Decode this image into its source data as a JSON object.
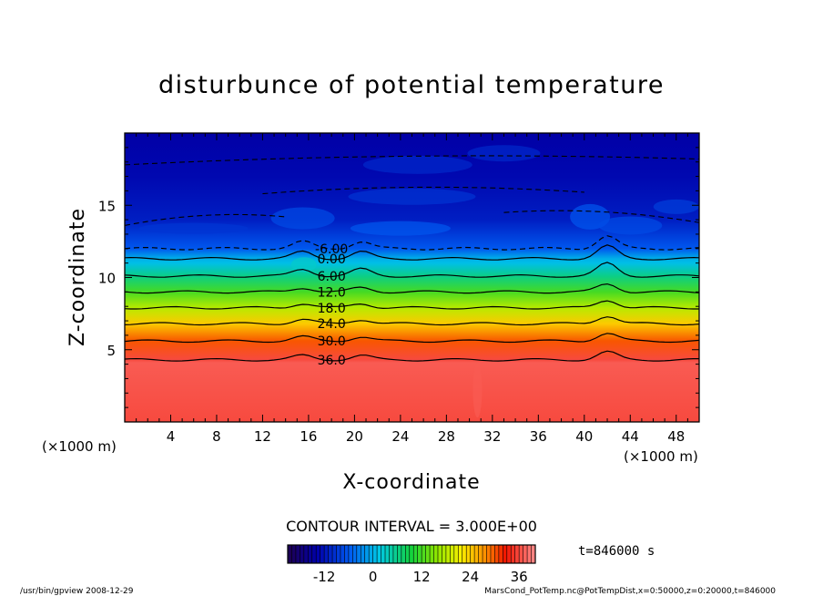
{
  "chart_data": {
    "type": "heatmap",
    "title": "disturbunce of potential temperature",
    "xlabel": "X-coordinate",
    "ylabel": "Z-coordinate",
    "x_unit": "(×1000 m)",
    "y_unit": "(×1000 m)",
    "xlim": [
      0,
      50
    ],
    "ylim": [
      0,
      20
    ],
    "x_ticks": [
      4,
      8,
      12,
      16,
      20,
      24,
      28,
      32,
      36,
      40,
      44,
      48
    ],
    "y_ticks": [
      5,
      10,
      15
    ],
    "contour_interval": "CONTOUR INTERVAL = 3.000E+00",
    "time": "t=846000 s",
    "color_range": [
      -21,
      40
    ],
    "colorbar_ticks": [
      -12,
      0,
      12,
      24,
      36
    ],
    "contours": [
      {
        "label": "-6.00",
        "z": 12.0
      },
      {
        "label": "0.00",
        "z": 11.3
      },
      {
        "label": "6.00",
        "z": 10.1
      },
      {
        "label": "12.0",
        "z": 9.0
      },
      {
        "label": "18.0",
        "z": 7.9
      },
      {
        "label": "24.0",
        "z": 6.8
      },
      {
        "label": "30.0",
        "z": 5.6
      },
      {
        "label": "36.0",
        "z": 4.3
      }
    ],
    "profile": [
      {
        "z": 0,
        "value": 36
      },
      {
        "z": 4.1,
        "value": 37
      },
      {
        "z": 4.3,
        "value": 36
      },
      {
        "z": 5.6,
        "value": 30
      },
      {
        "z": 6.8,
        "value": 24
      },
      {
        "z": 7.9,
        "value": 18
      },
      {
        "z": 9.0,
        "value": 12
      },
      {
        "z": 10.1,
        "value": 6
      },
      {
        "z": 11.0,
        "value": 1
      },
      {
        "z": 11.3,
        "value": 0
      },
      {
        "z": 12.0,
        "value": -6
      },
      {
        "z": 14.0,
        "value": -11
      },
      {
        "z": 17.0,
        "value": -13
      },
      {
        "z": 20.0,
        "value": -14
      }
    ]
  },
  "footer": {
    "left": "/usr/bin/gpview  2008-12-29",
    "right": "MarsCond_PotTemp.nc@PotTempDist,x=0:50000,z=0:20000,t=846000"
  }
}
